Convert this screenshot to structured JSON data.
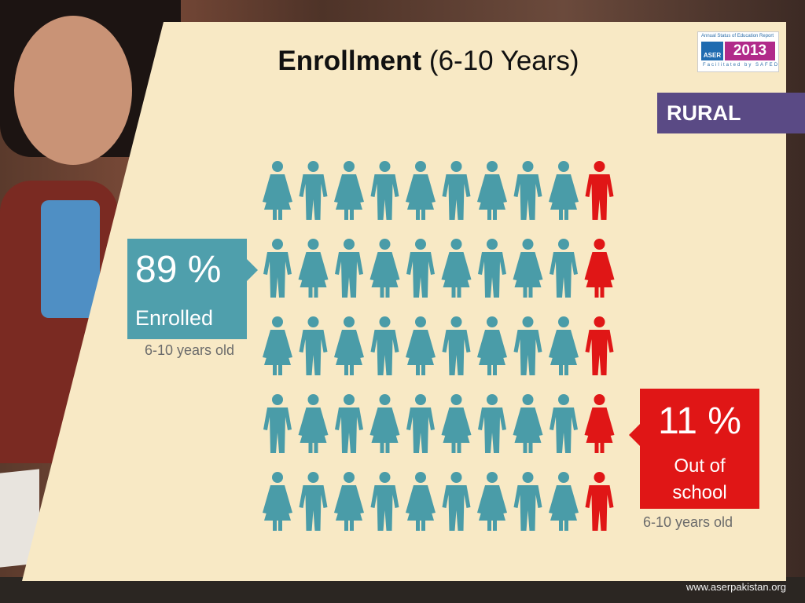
{
  "slide": {
    "title_bold": "Enrollment",
    "title_rest": " (6-10 Years)",
    "region": "RURAL",
    "logo": {
      "tagline": "Annual Status of Education Report",
      "name": "ASER",
      "year": "2013",
      "facilitated": "Facilitated by SAFED"
    },
    "enrolled": {
      "percent": "89 %",
      "label": "Enrolled",
      "age": "6-10 years old"
    },
    "out_of_school": {
      "percent": "11 %",
      "label_line1": "Out of",
      "label_line2": "school",
      "age": "6-10 years old"
    },
    "footer": "www.aserpakistan.org"
  },
  "pictograph": {
    "rows": 5,
    "per_row": 10,
    "enrolled_fraction": 0.89,
    "out_of_school_fraction": 0.11,
    "colors": {
      "enrolled": "#4a9ca8",
      "out_of_school": "#e01616"
    }
  }
}
